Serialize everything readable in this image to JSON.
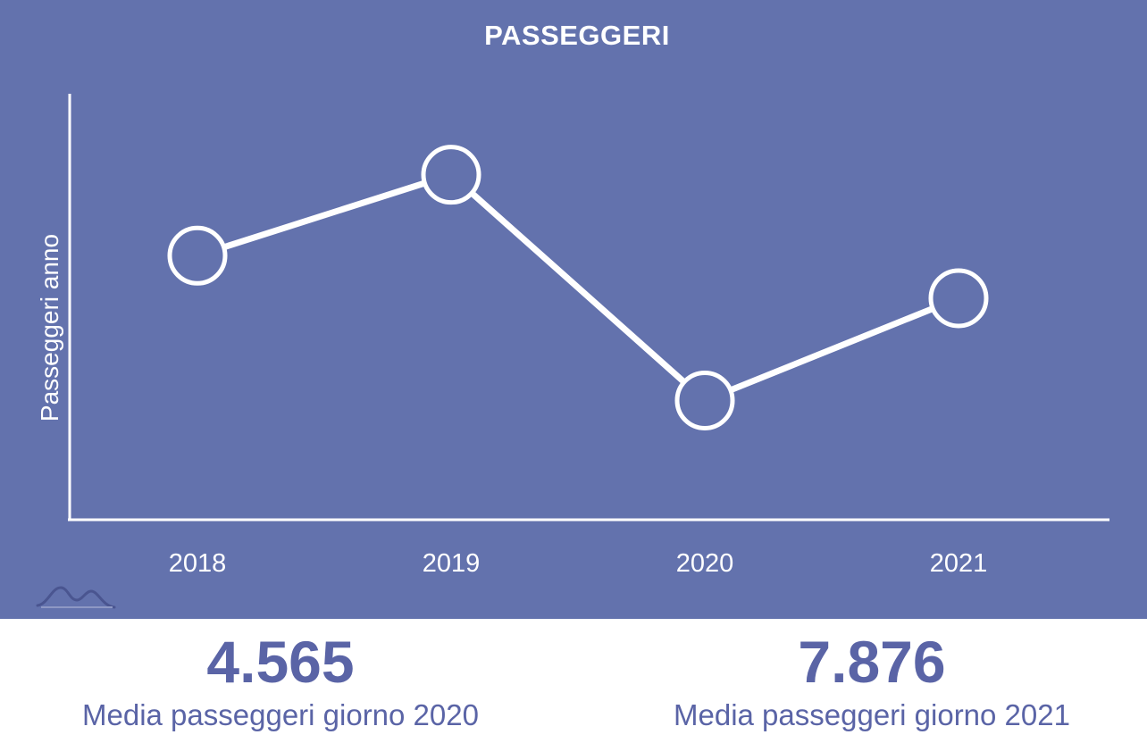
{
  "chart_data": {
    "type": "line",
    "title": "PASSEGGERI",
    "xlabel": "",
    "ylabel": "Passeggeri anno",
    "categories": [
      "2018",
      "2019",
      "2020",
      "2021"
    ],
    "series": [
      {
        "values": [
          0.62,
          0.81,
          0.28,
          0.52
        ]
      }
    ],
    "ylim": [
      0,
      1
    ],
    "grid": false,
    "legend": "none",
    "colors": {
      "background": "#6372ad",
      "line": "#ffffff"
    }
  },
  "stats": [
    {
      "value": "4.565",
      "label": "Media passeggeri giorno 2020"
    },
    {
      "value": "7.876",
      "label": "Media passeggeri giorno 2021"
    }
  ],
  "logo": {
    "icon": "mountains-icon"
  },
  "colors": {
    "accent": "#5a64a6",
    "panel": "#6372ad"
  }
}
